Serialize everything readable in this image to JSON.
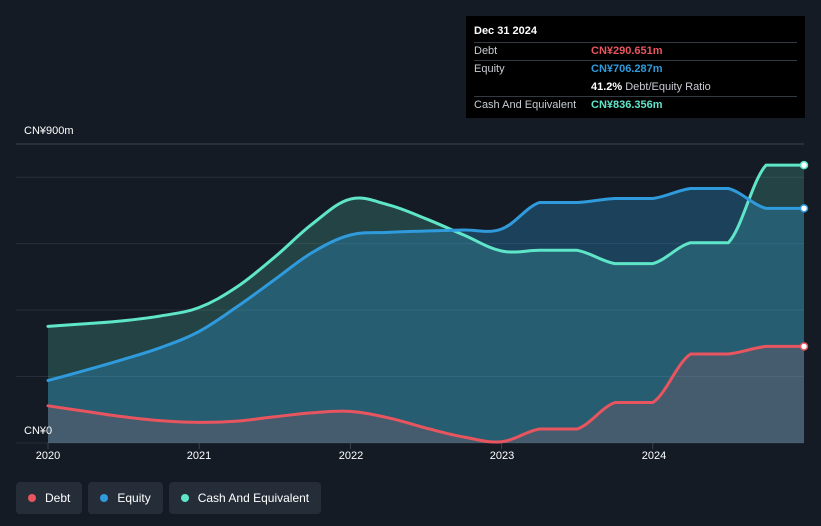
{
  "chart_data": {
    "type": "area",
    "title": "",
    "ylabel": "",
    "xlabel": "",
    "y_tick_labels": [
      "CN¥0",
      "CN¥900m"
    ],
    "ylim": [
      0,
      900
    ],
    "xlim": [
      2020.0,
      2025.0
    ],
    "x_ticks": [
      2020,
      2021,
      2022,
      2023,
      2024
    ],
    "x_tick_labels": [
      "2020",
      "2021",
      "2022",
      "2023",
      "2024"
    ],
    "grid": true,
    "legend_position": "bottom-left",
    "series": [
      {
        "name": "Cash And Equivalent",
        "color": "#5fe6c9",
        "points": [
          [
            2020.0,
            351
          ],
          [
            2020.25,
            359
          ],
          [
            2020.5,
            368
          ],
          [
            2020.75,
            383
          ],
          [
            2021.0,
            408
          ],
          [
            2021.25,
            470
          ],
          [
            2021.5,
            560
          ],
          [
            2021.75,
            660
          ],
          [
            2022.0,
            734
          ],
          [
            2022.25,
            717
          ],
          [
            2022.5,
            675
          ],
          [
            2022.75,
            626
          ],
          [
            2023.0,
            578
          ],
          [
            2023.25,
            580
          ],
          [
            2023.5,
            580
          ],
          [
            2023.75,
            540
          ],
          [
            2024.0,
            540
          ],
          [
            2024.25,
            603
          ],
          [
            2024.5,
            603
          ],
          [
            2024.75,
            836.356
          ],
          [
            2025.0,
            836.356
          ]
        ]
      },
      {
        "name": "Equity",
        "color": "#2f9bdc",
        "points": [
          [
            2020.0,
            188
          ],
          [
            2020.25,
            219
          ],
          [
            2020.5,
            252
          ],
          [
            2020.75,
            288
          ],
          [
            2021.0,
            336
          ],
          [
            2021.25,
            410
          ],
          [
            2021.5,
            492
          ],
          [
            2021.75,
            574
          ],
          [
            2022.0,
            626
          ],
          [
            2022.25,
            634
          ],
          [
            2022.5,
            638
          ],
          [
            2022.75,
            641
          ],
          [
            2023.0,
            644
          ],
          [
            2023.25,
            724
          ],
          [
            2023.5,
            724
          ],
          [
            2023.75,
            736
          ],
          [
            2024.0,
            736
          ],
          [
            2024.25,
            766
          ],
          [
            2024.5,
            766
          ],
          [
            2024.75,
            706.287
          ],
          [
            2025.0,
            706.287
          ]
        ]
      },
      {
        "name": "Debt",
        "color": "#e8555f",
        "points": [
          [
            2020.0,
            112
          ],
          [
            2020.25,
            95
          ],
          [
            2020.5,
            79
          ],
          [
            2020.75,
            67
          ],
          [
            2021.0,
            62
          ],
          [
            2021.25,
            66
          ],
          [
            2021.5,
            79
          ],
          [
            2021.75,
            91
          ],
          [
            2022.0,
            95
          ],
          [
            2022.25,
            76
          ],
          [
            2022.5,
            45
          ],
          [
            2022.75,
            18
          ],
          [
            2023.0,
            4
          ],
          [
            2023.25,
            42
          ],
          [
            2023.5,
            42
          ],
          [
            2023.75,
            122
          ],
          [
            2024.0,
            122
          ],
          [
            2024.25,
            268
          ],
          [
            2024.5,
            268
          ],
          [
            2024.75,
            290.651
          ],
          [
            2025.0,
            290.651
          ]
        ]
      }
    ],
    "tooltip": {
      "date": "Dec 31 2024",
      "rows": [
        {
          "label": "Debt",
          "value": "CN¥290.651m",
          "color": "#e8555f"
        },
        {
          "label": "Equity",
          "value": "CN¥706.287m",
          "color": "#2f9bdc"
        },
        {
          "label": "",
          "value": "41.2%",
          "sub": "Debt/Equity Ratio",
          "color": "#ffffff"
        },
        {
          "label": "Cash And Equivalent",
          "value": "CN¥836.356m",
          "color": "#5fe6c9"
        }
      ]
    },
    "legend": [
      {
        "label": "Debt",
        "color": "#e8555f"
      },
      {
        "label": "Equity",
        "color": "#2f9bdc"
      },
      {
        "label": "Cash And Equivalent",
        "color": "#5fe6c9"
      }
    ]
  }
}
